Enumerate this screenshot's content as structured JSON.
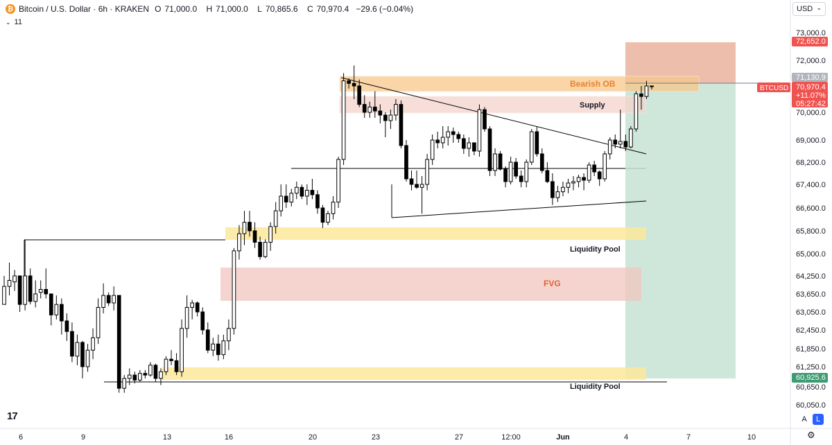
{
  "header": {
    "symbol_title": "Bitcoin / U.S. Dollar · 6h · KRAKEN",
    "open_label": "O",
    "open": "71,000.0",
    "high_label": "H",
    "high": "71,000.0",
    "low_label": "L",
    "low": "70,865.6",
    "close_label": "C",
    "close": "70,970.4",
    "change": "−29.6 (−0.04%)",
    "indicator_count": "11"
  },
  "currency_selector": "USD",
  "price_axis": {
    "ticks": [
      "73,000.0",
      "72,000.0",
      "71,000.0",
      "70,000.0",
      "69,000.0",
      "68,200.0",
      "67,400.0",
      "66,600.0",
      "65,800.0",
      "65,000.0",
      "64,250.0",
      "63,650.0",
      "63,050.0",
      "62,450.0",
      "61,850.0",
      "61,250.0",
      "60,650.0",
      "60,050.0"
    ],
    "tags": {
      "target": "72,652.0",
      "high": "71,130.9",
      "last": "70,970.4",
      "pct": "+11.07%",
      "countdown": "05:27:42",
      "stop": "60,925.6",
      "symbol": "BTCUSD"
    }
  },
  "time_axis": {
    "ticks": [
      "6",
      "9",
      "13",
      "16",
      "20",
      "23",
      "27",
      "12:00",
      "Jun",
      "4",
      "7",
      "10"
    ]
  },
  "annotations": {
    "bearish_ob": "Bearish OB",
    "supply": "Supply",
    "liquidity_pool_top": "Liquidity Pool",
    "fvg": "FVG",
    "liquidity_pool_bottom": "Liquidity Pool"
  },
  "colors": {
    "bull_body": "#ffffff",
    "bear_body": "#000000",
    "wick": "#000000",
    "bearish_ob": "#f7c88a",
    "supply": "#f5d3cc",
    "liquidity": "#fbe89a",
    "fvg": "#f2c6bf",
    "target_zone": "#eab39c",
    "stop_zone": "#c5e3d4",
    "target_tag": "#f05350",
    "stop_tag": "#3e9b73",
    "ob_text": "#e8812e",
    "fvg_text": "#e06433"
  },
  "chart_data": {
    "type": "candlestick",
    "title": "Bitcoin / U.S. Dollar · 6h · KRAKEN",
    "interval": "6h",
    "ylim": [
      60050,
      73000
    ],
    "candles_ohlc": [
      [
        63300,
        64250,
        63300,
        63900
      ],
      [
        63900,
        64700,
        63600,
        64100
      ],
      [
        64050,
        64450,
        63750,
        64250
      ],
      [
        64250,
        64250,
        63050,
        63300
      ],
      [
        63300,
        65500,
        63100,
        64250
      ],
      [
        64250,
        64500,
        63300,
        63400
      ],
      [
        63400,
        64100,
        63200,
        63650
      ],
      [
        63700,
        64100,
        63500,
        63800
      ],
      [
        63800,
        64500,
        63500,
        63650
      ],
      [
        63650,
        63650,
        62600,
        62950
      ],
      [
        62950,
        63600,
        62800,
        63300
      ],
      [
        63300,
        63500,
        62300,
        62750
      ],
      [
        62750,
        63000,
        62100,
        62400
      ],
      [
        62400,
        62700,
        61400,
        61600
      ],
      [
        61600,
        62300,
        61300,
        62050
      ],
      [
        62050,
        62100,
        60900,
        61250
      ],
      [
        61250,
        62000,
        61100,
        61800
      ],
      [
        61800,
        62500,
        61500,
        62200
      ],
      [
        62200,
        63500,
        62000,
        63200
      ],
      [
        63200,
        64000,
        63000,
        63600
      ],
      [
        63600,
        63700,
        63250,
        63350
      ],
      [
        63350,
        63900,
        63100,
        63600
      ],
      [
        63600,
        63600,
        60450,
        60600
      ],
      [
        60600,
        61000,
        60450,
        60900
      ],
      [
        60900,
        61200,
        60700,
        61000
      ],
      [
        61000,
        61100,
        60750,
        60850
      ],
      [
        60850,
        61150,
        60800,
        61050
      ],
      [
        61050,
        61150,
        60900,
        61000
      ],
      [
        61000,
        61400,
        60950,
        61300
      ],
      [
        61300,
        61350,
        60800,
        60900
      ],
      [
        60900,
        61200,
        60700,
        61100
      ],
      [
        61100,
        61600,
        61000,
        61500
      ],
      [
        61500,
        61800,
        61300,
        61450
      ],
      [
        61450,
        61700,
        61000,
        61100
      ],
      [
        61100,
        62800,
        60950,
        62500
      ],
      [
        62500,
        63600,
        62200,
        63200
      ],
      [
        63200,
        63450,
        62800,
        63350
      ],
      [
        63350,
        63400,
        62900,
        63050
      ],
      [
        63050,
        63200,
        62300,
        62450
      ],
      [
        62450,
        62700,
        61700,
        61800
      ],
      [
        61800,
        62200,
        61600,
        62000
      ],
      [
        62000,
        62300,
        61450,
        61650
      ],
      [
        61650,
        62300,
        61500,
        62100
      ],
      [
        62100,
        62800,
        61800,
        62500
      ],
      [
        62500,
        65200,
        62300,
        65100
      ],
      [
        65100,
        66000,
        64800,
        65700
      ],
      [
        65700,
        66500,
        65300,
        66100
      ],
      [
        66100,
        66500,
        65600,
        65800
      ],
      [
        65800,
        66100,
        65200,
        65400
      ],
      [
        65400,
        65600,
        64800,
        64900
      ],
      [
        64900,
        65500,
        64850,
        65400
      ],
      [
        65400,
        66100,
        65100,
        65950
      ],
      [
        65950,
        66800,
        65700,
        66500
      ],
      [
        66500,
        67400,
        66300,
        67000
      ],
      [
        67000,
        67400,
        66600,
        66800
      ],
      [
        66800,
        67250,
        66650,
        67100
      ],
      [
        67100,
        67500,
        66900,
        67300
      ],
      [
        67300,
        67400,
        66900,
        67000
      ],
      [
        67000,
        67400,
        66700,
        67200
      ],
      [
        67200,
        67600,
        66900,
        67050
      ],
      [
        67050,
        67200,
        66400,
        66600
      ],
      [
        66600,
        66700,
        65900,
        66100
      ],
      [
        66100,
        66500,
        66000,
        66400
      ],
      [
        66400,
        67000,
        66200,
        66800
      ],
      [
        66800,
        68400,
        66600,
        68300
      ],
      [
        68300,
        71500,
        68100,
        71200
      ],
      [
        71200,
        71300,
        70900,
        71100
      ],
      [
        71100,
        71800,
        70500,
        71000
      ],
      [
        71000,
        71250,
        70200,
        70300
      ],
      [
        70300,
        70650,
        69800,
        70000
      ],
      [
        70000,
        70400,
        69800,
        70200
      ],
      [
        70200,
        70800,
        69800,
        70050
      ],
      [
        70050,
        70300,
        69600,
        69900
      ],
      [
        69900,
        70000,
        69100,
        69700
      ],
      [
        69700,
        70100,
        69400,
        69900
      ],
      [
        69900,
        70500,
        69700,
        70300
      ],
      [
        70300,
        70450,
        68700,
        68800
      ],
      [
        68800,
        69000,
        67500,
        67600
      ],
      [
        67600,
        67900,
        67200,
        67400
      ],
      [
        67400,
        67900,
        67250,
        67300
      ],
      [
        67300,
        67700,
        66400,
        67400
      ],
      [
        67400,
        68500,
        67200,
        68300
      ],
      [
        68300,
        69200,
        68100,
        69000
      ],
      [
        69000,
        69300,
        68700,
        68900
      ],
      [
        68900,
        69500,
        68700,
        69100
      ],
      [
        69100,
        69500,
        68800,
        69300
      ],
      [
        69300,
        69450,
        68900,
        69200
      ],
      [
        69200,
        69300,
        68900,
        69050
      ],
      [
        69050,
        69200,
        68500,
        68700
      ],
      [
        68700,
        69100,
        68400,
        68900
      ],
      [
        68900,
        68900,
        68450,
        68600
      ],
      [
        68600,
        70300,
        68400,
        70100
      ],
      [
        70100,
        70200,
        69300,
        69400
      ],
      [
        69400,
        69500,
        67700,
        67900
      ],
      [
        67900,
        68700,
        67700,
        68500
      ],
      [
        68500,
        68600,
        67900,
        67950
      ],
      [
        67950,
        68050,
        67300,
        67500
      ],
      [
        67500,
        68400,
        67400,
        68200
      ],
      [
        68200,
        68350,
        67600,
        67700
      ],
      [
        67700,
        67900,
        67300,
        67500
      ],
      [
        67500,
        68300,
        67300,
        68200
      ],
      [
        68200,
        69400,
        68100,
        69300
      ],
      [
        69300,
        69500,
        68400,
        68500
      ],
      [
        68500,
        68700,
        67800,
        67900
      ],
      [
        67900,
        68200,
        67450,
        67500
      ],
      [
        67500,
        67800,
        66700,
        66950
      ],
      [
        66950,
        67350,
        66800,
        67150
      ],
      [
        67150,
        67500,
        67000,
        67300
      ],
      [
        67300,
        67600,
        67100,
        67450
      ],
      [
        67450,
        67700,
        67200,
        67500
      ],
      [
        67500,
        67750,
        67300,
        67650
      ],
      [
        67650,
        67800,
        67200,
        67550
      ],
      [
        67550,
        68200,
        67450,
        68100
      ],
      [
        68100,
        68250,
        67700,
        67850
      ],
      [
        67850,
        67900,
        67350,
        67600
      ],
      [
        67600,
        68600,
        67500,
        68500
      ],
      [
        68500,
        69100,
        68300,
        69000
      ],
      [
        69000,
        69200,
        68700,
        68850
      ],
      [
        68850,
        70100,
        68700,
        68950
      ],
      [
        68950,
        69200,
        68600,
        68750
      ],
      [
        68750,
        69500,
        68700,
        69400
      ],
      [
        69400,
        70800,
        69300,
        70700
      ],
      [
        70700,
        71000,
        70100,
        70600
      ],
      [
        70600,
        71200,
        70500,
        71000
      ],
      [
        71000,
        71000,
        70865,
        70970
      ]
    ],
    "zones": [
      {
        "label": "Bearish OB",
        "from": 70850,
        "to": 71150
      },
      {
        "label": "Supply",
        "from": 70150,
        "to": 70600
      },
      {
        "label": "Liquidity Pool",
        "from": 65550,
        "to": 65750
      },
      {
        "label": "FVG",
        "from": 63600,
        "to": 64400
      },
      {
        "label": "Liquidity Pool",
        "from": 60750,
        "to": 60950
      }
    ],
    "position": {
      "entry": 70970.4,
      "target": 72652.0,
      "stop": 60925.6
    },
    "xlabel": "",
    "ylabel": ""
  }
}
